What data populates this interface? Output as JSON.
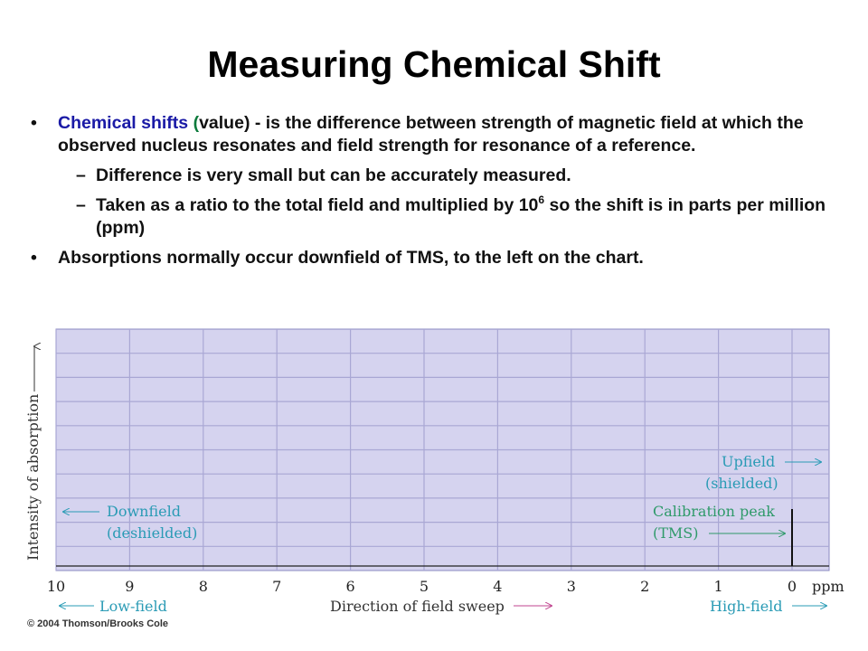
{
  "title": "Measuring Chemical Shift",
  "bullet1": {
    "label": "Chemical shifts",
    "paren_open": "(",
    "value_word": "value",
    "rest_first": ") - is the difference between strength of magnetic field at which the observed nucleus resonates and field strength for resonance of a reference."
  },
  "sub1": "Difference is very small but can be accurately measured.",
  "sub2": {
    "before": "Taken as a ratio to the total field and multiplied by 10",
    "exp": "6",
    "after": " so the shift is in parts per million (ppm)"
  },
  "bullet2": "Absorptions normally occur downfield of TMS, to the left on the chart.",
  "chart": {
    "ylabel": "Intensity of absorption",
    "ticks": [
      "10",
      "9",
      "8",
      "7",
      "6",
      "5",
      "4",
      "3",
      "2",
      "1",
      "0"
    ],
    "unit": "ppm",
    "downfield": "Downfield",
    "deshielded": "(deshielded)",
    "upfield": "Upfield",
    "shielded": "(shielded)",
    "calibration": "Calibration peak",
    "tms": "(TMS)",
    "lowfield": "Low-field",
    "direction": "Direction of field sweep",
    "highfield": "High-field",
    "grid_color": "#a9a7d4",
    "bg_color": "#d5d3ef",
    "label_color": "#2a9bb5",
    "green_color": "#2f9a6a"
  },
  "credit": "© 2004 Thomson/Brooks Cole"
}
